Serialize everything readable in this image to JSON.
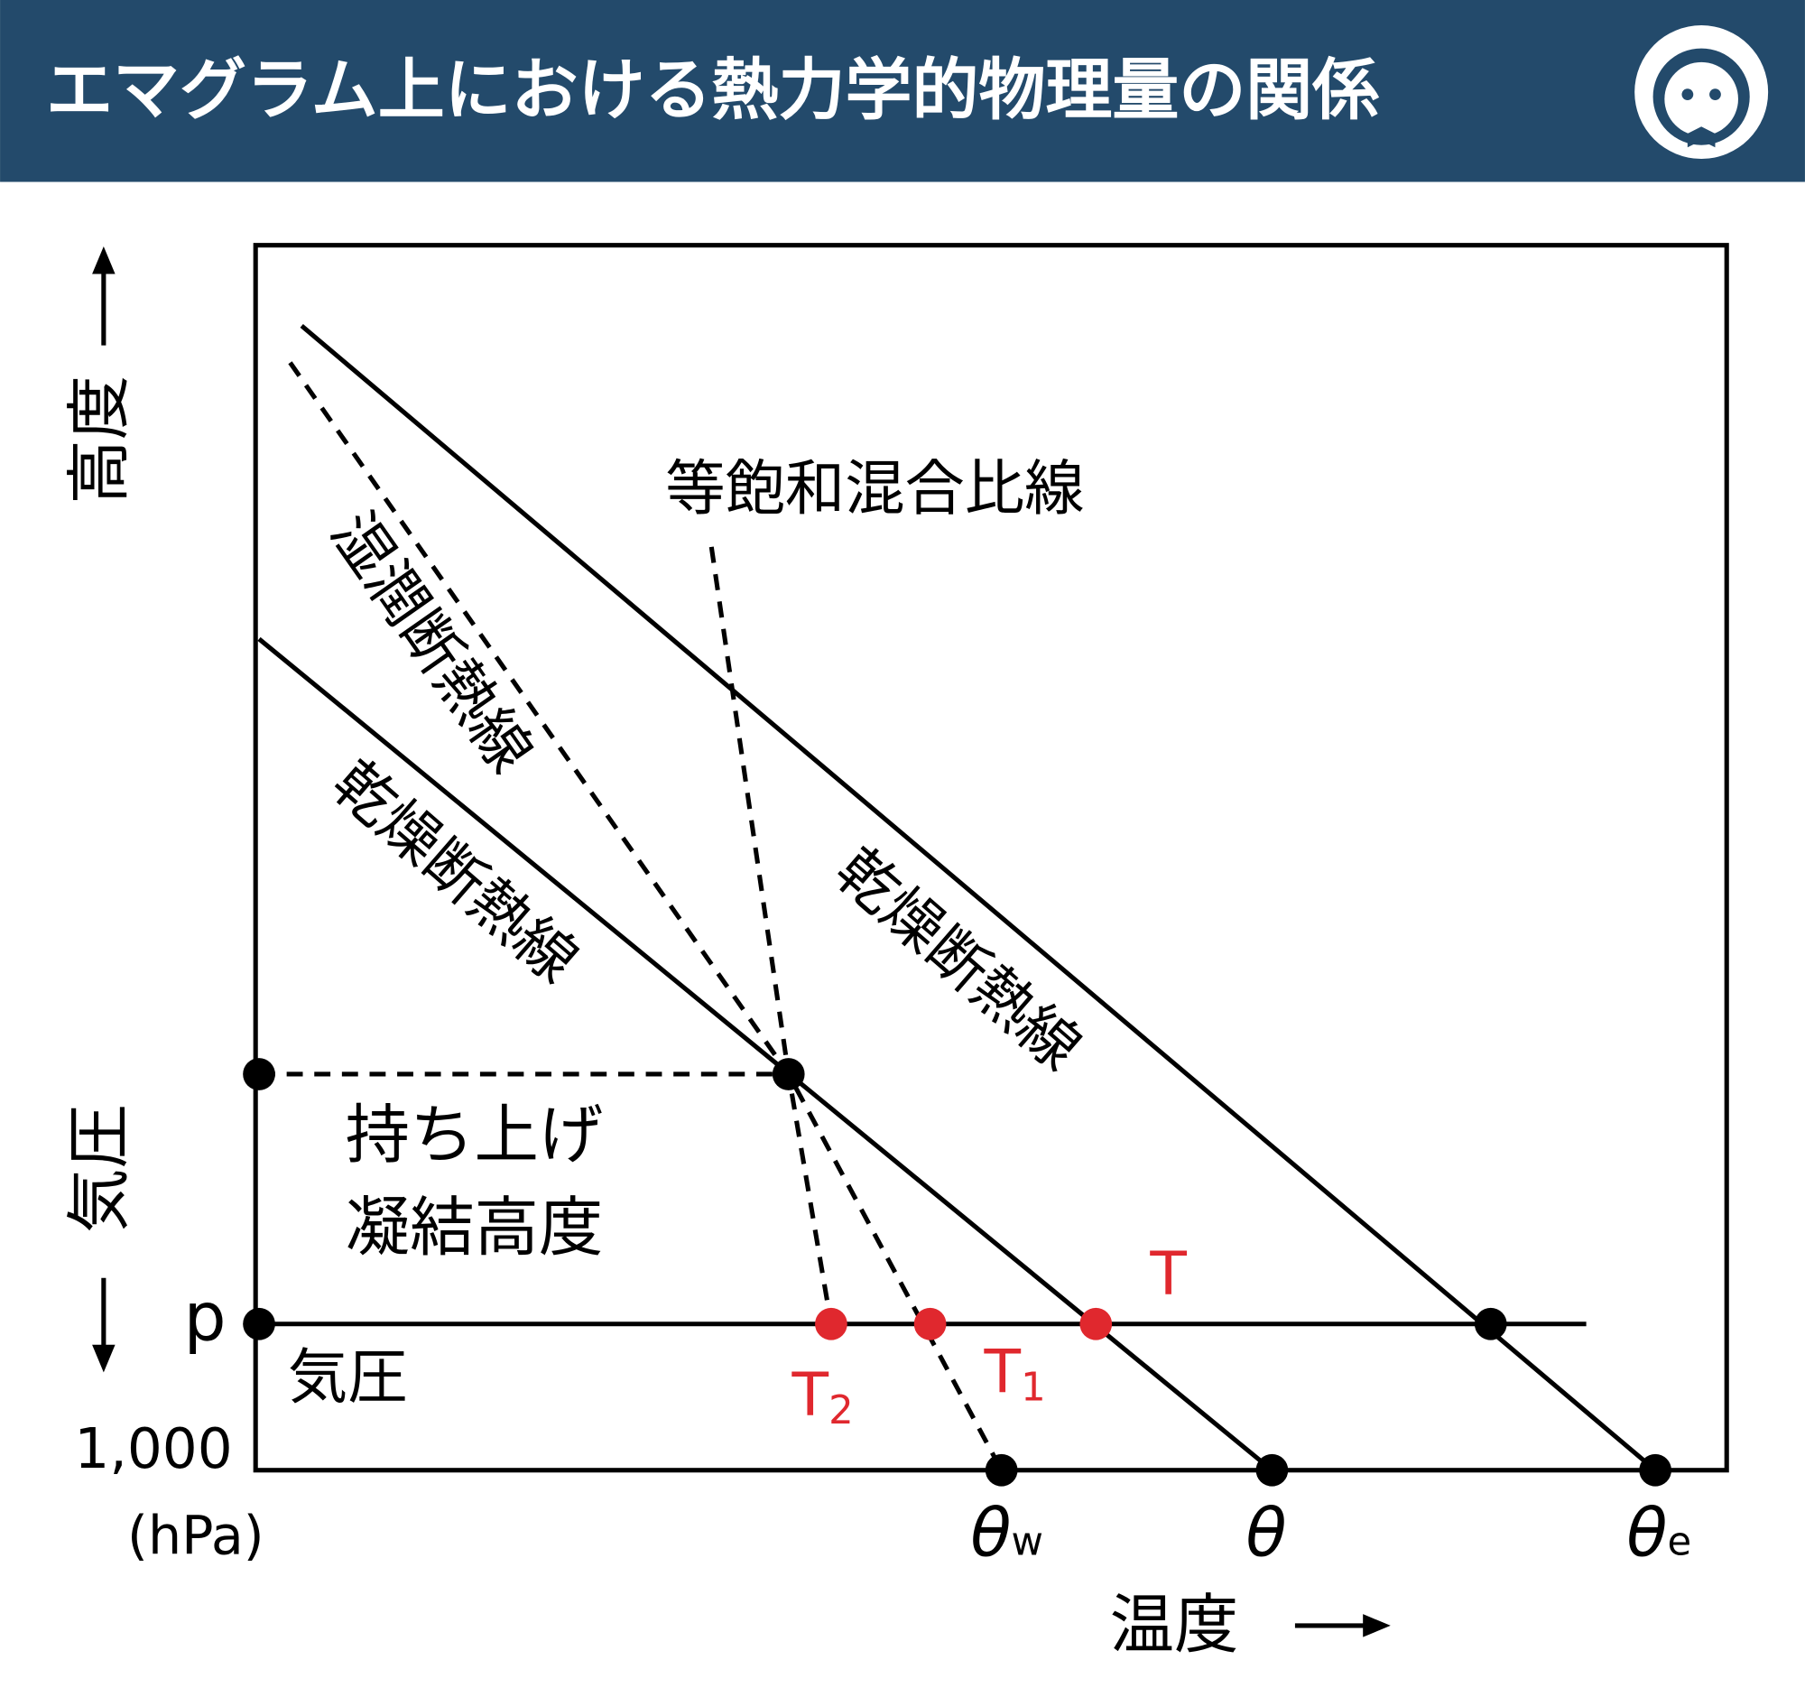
{
  "header": {
    "title": "エマグラム上における熱力学的物理量の関係"
  },
  "axes": {
    "y_top": "高度",
    "y_bottom": "気圧",
    "x": "温度",
    "pressure_label": "p",
    "surface_pressure": "1,000",
    "unit": "(hPa)"
  },
  "lines": {
    "mixing_ratio": "等飽和混合比線",
    "moist_adiabat": "湿潤断熱線",
    "dry_adiabat_left": "乾燥断熱線",
    "dry_adiabat_right": "乾燥断熱線",
    "pressure": "気圧"
  },
  "lcl": [
    "持ち上げ",
    "凝結高度"
  ],
  "temperatures": [
    {
      "symbol": "T"
    },
    {
      "symbol": "T",
      "sub": "1"
    },
    {
      "symbol": "T",
      "sub": "2"
    }
  ],
  "potential_temperatures": [
    {
      "symbol": "θ",
      "sub": "w"
    },
    {
      "symbol": "θ"
    },
    {
      "symbol": "θ",
      "sub": "e"
    }
  ]
}
